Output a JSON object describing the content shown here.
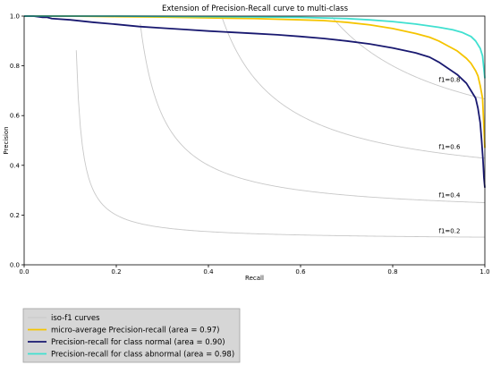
{
  "chart_data": {
    "type": "line",
    "title": "Extension of Precision-Recall curve to multi-class",
    "xlabel": "Recall",
    "ylabel": "Precision",
    "xlim": [
      0.0,
      1.0
    ],
    "ylim": [
      0.0,
      1.0
    ],
    "xticks": [
      0.0,
      0.2,
      0.4,
      0.6,
      0.8,
      1.0
    ],
    "yticks": [
      0.0,
      0.2,
      0.4,
      0.6,
      0.8,
      1.0
    ],
    "xtick_labels": [
      "0.0",
      "0.2",
      "0.4",
      "0.6",
      "0.8",
      "1.0"
    ],
    "ytick_labels": [
      "0.0",
      "0.2",
      "0.4",
      "0.6",
      "0.8",
      "1.0"
    ],
    "grid": false,
    "legend_position": "bottom-left, below axes",
    "iso_f1": {
      "label": "iso-f1 curves",
      "color": "#c8c8c8",
      "values": [
        0.2,
        0.4,
        0.6,
        0.8
      ],
      "annotations": [
        "f1=0.2",
        "f1=0.4",
        "f1=0.6",
        "f1=0.8"
      ]
    },
    "series": [
      {
        "name": "micro-average Precision-recall (area = 0.97)",
        "color": "#f5c400",
        "x": [
          0.0,
          0.1,
          0.2,
          0.3,
          0.4,
          0.5,
          0.6,
          0.65,
          0.7,
          0.75,
          0.8,
          0.85,
          0.88,
          0.9,
          0.92,
          0.94,
          0.96,
          0.97,
          0.98,
          0.985,
          0.99,
          0.995,
          1.0
        ],
        "y": [
          1.0,
          1.0,
          0.998,
          0.996,
          0.993,
          0.99,
          0.985,
          0.982,
          0.975,
          0.965,
          0.95,
          0.93,
          0.915,
          0.9,
          0.88,
          0.86,
          0.83,
          0.81,
          0.78,
          0.76,
          0.72,
          0.67,
          0.47
        ]
      },
      {
        "name": "Precision-recall for class normal (area = 0.90)",
        "color": "#191970",
        "x": [
          0.0,
          0.02,
          0.04,
          0.05,
          0.06,
          0.1,
          0.15,
          0.2,
          0.25,
          0.3,
          0.35,
          0.4,
          0.45,
          0.5,
          0.55,
          0.6,
          0.65,
          0.7,
          0.75,
          0.8,
          0.85,
          0.88,
          0.9,
          0.92,
          0.94,
          0.96,
          0.97,
          0.98,
          0.985,
          0.99,
          0.993,
          0.996,
          0.998,
          1.0
        ],
        "y": [
          1.0,
          1.0,
          0.995,
          0.995,
          0.99,
          0.985,
          0.975,
          0.967,
          0.958,
          0.952,
          0.946,
          0.94,
          0.935,
          0.93,
          0.925,
          0.918,
          0.91,
          0.9,
          0.888,
          0.872,
          0.852,
          0.835,
          0.815,
          0.79,
          0.765,
          0.73,
          0.7,
          0.67,
          0.63,
          0.57,
          0.5,
          0.42,
          0.35,
          0.31
        ]
      },
      {
        "name": "Precision-recall for class abnormal (area = 0.98)",
        "color": "#40e0d0",
        "x": [
          0.0,
          0.2,
          0.4,
          0.6,
          0.7,
          0.75,
          0.8,
          0.85,
          0.9,
          0.93,
          0.95,
          0.97,
          0.98,
          0.99,
          0.995,
          1.0
        ],
        "y": [
          1.0,
          1.0,
          0.998,
          0.995,
          0.99,
          0.985,
          0.978,
          0.968,
          0.955,
          0.945,
          0.935,
          0.918,
          0.9,
          0.87,
          0.84,
          0.75
        ]
      }
    ]
  }
}
